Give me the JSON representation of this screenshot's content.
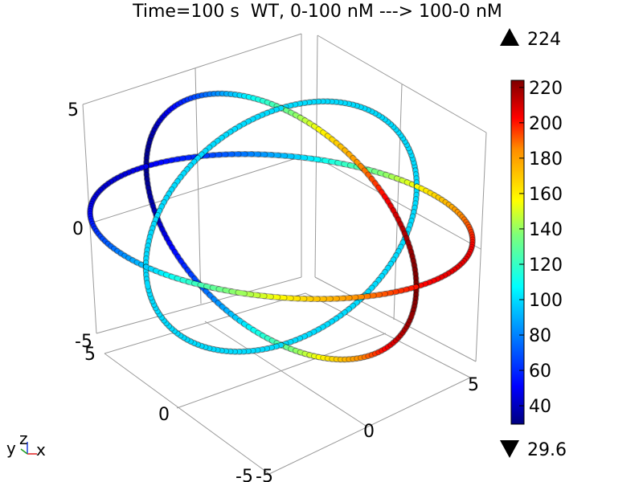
{
  "chart_data": {
    "type": "3d-tube-plot",
    "title": "Time=100 s  WT, 0-100 nM ---> 100-0 nM",
    "colorbar": {
      "colormap": "rainbow",
      "min": 29.6,
      "max": 224,
      "max_label": "224",
      "min_label": "29.6",
      "ticks": [
        "220",
        "200",
        "180",
        "160",
        "140",
        "120",
        "100",
        "80",
        "60",
        "40"
      ],
      "tick_values": [
        220,
        200,
        180,
        160,
        140,
        120,
        100,
        80,
        60,
        40
      ]
    },
    "axes": {
      "z_ticks": [
        "5",
        "0",
        "-5"
      ],
      "y_ticks": [
        "5",
        "0",
        "-5"
      ],
      "x_ticks": [
        "-5",
        "0",
        "5"
      ],
      "triad": {
        "y": "y",
        "z": "z",
        "x": "x"
      }
    },
    "rings": [
      {
        "name": "",
        "plane": "xy",
        "value_range": [
          29.6,
          224
        ]
      },
      {
        "name": "",
        "plane": "xz",
        "value_range": [
          29.6,
          224
        ]
      },
      {
        "name": "",
        "plane": "yz",
        "value_range": [
          95,
          105
        ]
      }
    ]
  }
}
